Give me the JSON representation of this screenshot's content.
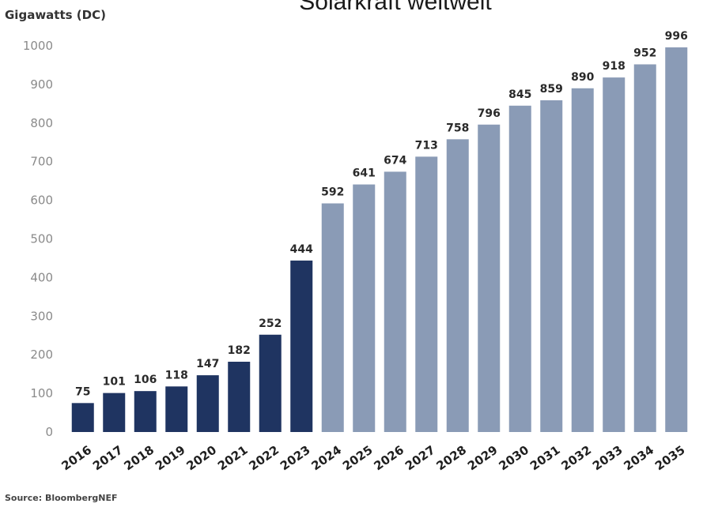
{
  "chart_data": {
    "type": "bar",
    "title": "Solarkraft weltweit",
    "ylabel": "Gigawatts (DC)",
    "source": "Source: BloombergNEF",
    "ylim": [
      0,
      1000
    ],
    "yticks": [
      0,
      100,
      200,
      300,
      400,
      500,
      600,
      700,
      800,
      900,
      1000
    ],
    "categories": [
      "2016",
      "2017",
      "2018",
      "2019",
      "2020",
      "2021",
      "2022",
      "2023",
      "2024",
      "2025",
      "2026",
      "2027",
      "2028",
      "2029",
      "2030",
      "2031",
      "2032",
      "2033",
      "2034",
      "2035"
    ],
    "values": [
      75,
      101,
      106,
      118,
      147,
      182,
      252,
      444,
      592,
      641,
      674,
      713,
      758,
      796,
      845,
      859,
      890,
      918,
      952,
      996
    ],
    "colors": {
      "actual": "#1f3461",
      "forecast": "#8a9bb6"
    },
    "forecast_start_index": 8,
    "grid": false
  }
}
